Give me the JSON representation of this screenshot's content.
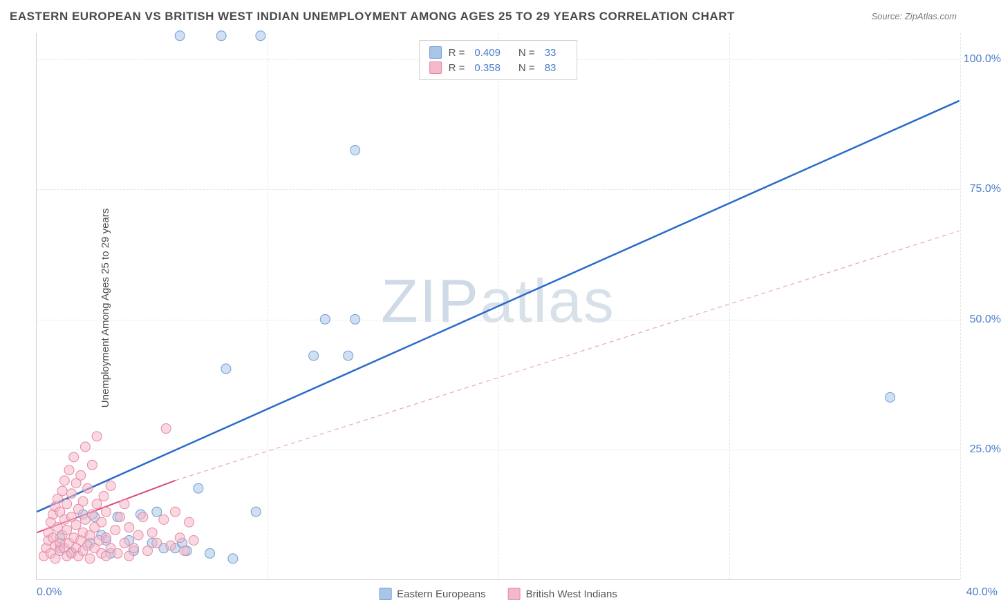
{
  "title": "EASTERN EUROPEAN VS BRITISH WEST INDIAN UNEMPLOYMENT AMONG AGES 25 TO 29 YEARS CORRELATION CHART",
  "source": "Source: ZipAtlas.com",
  "y_axis_label": "Unemployment Among Ages 25 to 29 years",
  "watermark": "ZIPatlas",
  "chart": {
    "type": "scatter",
    "background_color": "#ffffff",
    "grid_color": "#e5e5e5",
    "axis_color": "#d0d0d0",
    "tick_label_color": "#4a7cc9",
    "title_color": "#4a4a4a",
    "title_fontsize": 17,
    "label_fontsize": 15,
    "tick_fontsize": 16,
    "xlim": [
      0,
      40
    ],
    "ylim": [
      0,
      105
    ],
    "x_ticks": [
      0,
      10,
      20,
      30,
      40
    ],
    "x_tick_labels": [
      "0.0%",
      "",
      "",
      "",
      "40.0%"
    ],
    "y_ticks": [
      25,
      50,
      75,
      100
    ],
    "y_tick_labels": [
      "25.0%",
      "50.0%",
      "75.0%",
      "100.0%"
    ],
    "marker_radius": 7,
    "marker_opacity": 0.55,
    "series": [
      {
        "name": "Eastern Europeans",
        "color_fill": "#a9c6e8",
        "color_stroke": "#6d9ed4",
        "R": 0.409,
        "N": 33,
        "trend_line": {
          "x1": 0,
          "y1": 13,
          "x2": 40,
          "y2": 92,
          "stroke": "#2a6ac9",
          "width": 2.5,
          "dash": "none"
        },
        "points": [
          [
            6.2,
            104.5
          ],
          [
            8.0,
            104.5
          ],
          [
            9.7,
            104.5
          ],
          [
            13.8,
            82.5
          ],
          [
            12.5,
            50.0
          ],
          [
            13.8,
            50.0
          ],
          [
            37.0,
            35.0
          ],
          [
            12.0,
            43.0
          ],
          [
            13.5,
            43.0
          ],
          [
            8.2,
            40.5
          ],
          [
            7.0,
            17.5
          ],
          [
            9.5,
            13.0
          ],
          [
            2.0,
            12.5
          ],
          [
            2.5,
            12.0
          ],
          [
            2.3,
            7.0
          ],
          [
            2.8,
            8.5
          ],
          [
            1.0,
            6.0
          ],
          [
            1.5,
            5.2
          ],
          [
            1.0,
            8.0
          ],
          [
            3.5,
            12.0
          ],
          [
            3.0,
            7.5
          ],
          [
            3.2,
            5.0
          ],
          [
            4.0,
            7.5
          ],
          [
            4.2,
            5.5
          ],
          [
            4.5,
            12.5
          ],
          [
            5.0,
            7.0
          ],
          [
            5.5,
            6.0
          ],
          [
            5.2,
            13.0
          ],
          [
            6.0,
            6.0
          ],
          [
            6.3,
            7.0
          ],
          [
            6.5,
            5.5
          ],
          [
            7.5,
            5.0
          ],
          [
            8.5,
            4.0
          ]
        ]
      },
      {
        "name": "British West Indians",
        "color_fill": "#f4b9c9",
        "color_stroke": "#e985a4",
        "R": 0.358,
        "N": 83,
        "trend_line_solid": {
          "x1": 0,
          "y1": 9,
          "x2": 6,
          "y2": 19,
          "stroke": "#d94b74",
          "width": 2,
          "dash": "none"
        },
        "trend_line_dashed": {
          "x1": 6,
          "y1": 19,
          "x2": 40,
          "y2": 67,
          "stroke": "#e9a5b8",
          "width": 1.2,
          "dash": "6,5"
        },
        "points": [
          [
            0.3,
            4.5
          ],
          [
            0.4,
            6.0
          ],
          [
            0.5,
            7.5
          ],
          [
            0.5,
            9.0
          ],
          [
            0.6,
            5.0
          ],
          [
            0.6,
            11.0
          ],
          [
            0.7,
            8.0
          ],
          [
            0.7,
            12.5
          ],
          [
            0.8,
            6.5
          ],
          [
            0.8,
            14.0
          ],
          [
            0.8,
            4.0
          ],
          [
            0.9,
            10.0
          ],
          [
            0.9,
            15.5
          ],
          [
            1.0,
            7.0
          ],
          [
            1.0,
            5.5
          ],
          [
            1.0,
            13.0
          ],
          [
            1.1,
            17.0
          ],
          [
            1.1,
            8.5
          ],
          [
            1.2,
            6.0
          ],
          [
            1.2,
            11.5
          ],
          [
            1.2,
            19.0
          ],
          [
            1.3,
            4.5
          ],
          [
            1.3,
            9.5
          ],
          [
            1.3,
            14.5
          ],
          [
            1.4,
            21.0
          ],
          [
            1.4,
            7.0
          ],
          [
            1.5,
            5.0
          ],
          [
            1.5,
            12.0
          ],
          [
            1.5,
            16.5
          ],
          [
            1.6,
            8.0
          ],
          [
            1.6,
            23.5
          ],
          [
            1.7,
            6.0
          ],
          [
            1.7,
            10.5
          ],
          [
            1.7,
            18.5
          ],
          [
            1.8,
            4.5
          ],
          [
            1.8,
            13.5
          ],
          [
            1.9,
            7.5
          ],
          [
            1.9,
            20.0
          ],
          [
            2.0,
            5.5
          ],
          [
            2.0,
            9.0
          ],
          [
            2.0,
            15.0
          ],
          [
            2.1,
            11.5
          ],
          [
            2.1,
            25.5
          ],
          [
            2.2,
            6.5
          ],
          [
            2.2,
            17.5
          ],
          [
            2.3,
            8.5
          ],
          [
            2.3,
            4.0
          ],
          [
            2.4,
            12.5
          ],
          [
            2.4,
            22.0
          ],
          [
            2.5,
            6.0
          ],
          [
            2.5,
            10.0
          ],
          [
            2.6,
            14.5
          ],
          [
            2.6,
            27.5
          ],
          [
            2.7,
            7.5
          ],
          [
            2.8,
            5.0
          ],
          [
            2.8,
            11.0
          ],
          [
            2.9,
            16.0
          ],
          [
            3.0,
            8.0
          ],
          [
            3.0,
            4.5
          ],
          [
            3.0,
            13.0
          ],
          [
            3.2,
            6.0
          ],
          [
            3.2,
            18.0
          ],
          [
            3.4,
            9.5
          ],
          [
            3.5,
            5.0
          ],
          [
            3.6,
            12.0
          ],
          [
            3.8,
            7.0
          ],
          [
            3.8,
            14.5
          ],
          [
            4.0,
            4.5
          ],
          [
            4.0,
            10.0
          ],
          [
            4.2,
            6.0
          ],
          [
            4.4,
            8.5
          ],
          [
            4.6,
            12.0
          ],
          [
            4.8,
            5.5
          ],
          [
            5.0,
            9.0
          ],
          [
            5.2,
            7.0
          ],
          [
            5.5,
            11.5
          ],
          [
            5.6,
            29.0
          ],
          [
            5.8,
            6.5
          ],
          [
            6.0,
            13.0
          ],
          [
            6.2,
            8.0
          ],
          [
            6.4,
            5.5
          ],
          [
            6.6,
            11.0
          ],
          [
            6.8,
            7.5
          ]
        ]
      }
    ],
    "legend_top": {
      "border_color": "#d0d0d0",
      "label_R": "R =",
      "label_N": "N ="
    },
    "legend_bottom_labels": [
      "Eastern Europeans",
      "British West Indians"
    ]
  }
}
